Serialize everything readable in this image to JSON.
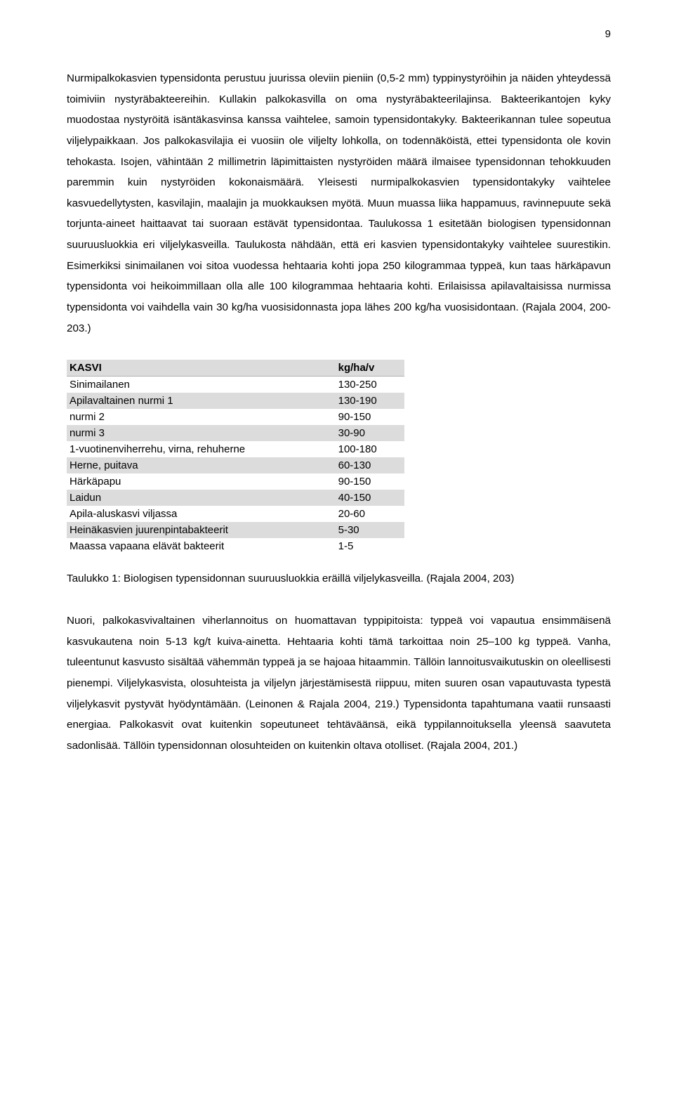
{
  "page_number": "9",
  "paragraph1": "Nurmipalkokasvien typensidonta perustuu juurissa oleviin pieniin (0,5-2 mm) typpinystyröihin ja näiden yhteydessä toimiviin nystyräbakteereihin. Kullakin palkokasvilla on oma nystyräbakteerilajinsa. Bakteerikantojen kyky muodostaa nystyröitä isäntäkasvinsa kanssa vaihtelee, samoin typensidontakyky. Bakteerikannan tulee sopeutua viljelypaikkaan. Jos palkokasvilajia ei vuosiin ole viljelty lohkolla, on todennäköistä, ettei typensidonta ole kovin tehokasta. Isojen, vähintään 2 millimetrin läpimittaisten nystyröiden määrä ilmaisee typensidonnan tehokkuuden paremmin kuin nystyröiden kokonaismäärä. Yleisesti nurmipalkokasvien typensidontakyky vaihtelee kasvuedellytysten, kasvilajin, maalajin ja muokkauksen myötä. Muun muassa liika happamuus, ravinnepuute sekä torjunta-aineet haittaavat tai suoraan estävät typensidontaa. Taulukossa 1 esitetään biologisen typensidonnan suuruusluokkia eri viljelykasveilla. Taulukosta nähdään, että eri kasvien typensidontakyky vaihtelee suurestikin. Esimerkiksi sinimailanen voi sitoa vuodessa hehtaaria kohti jopa 250 kilogrammaa typpeä, kun taas härkäpavun typensidonta voi heikoimmillaan olla alle 100 kilogrammaa hehtaaria kohti. Erilaisissa apilavaltaisissa nurmissa typensidonta voi vaihdella vain 30 kg/ha vuosisidonnasta jopa lähes 200 kg/ha vuosisidontaan. (Rajala 2004, 200-203.)",
  "table": {
    "header": {
      "col1": "KASVI",
      "col2": "kg/ha/v"
    },
    "rows": [
      {
        "col1": "Sinimailanen",
        "col2": "130-250",
        "alt": false
      },
      {
        "col1": "Apilavaltainen nurmi 1",
        "col2": "130-190",
        "alt": true
      },
      {
        "col1": "nurmi 2",
        "col2": "90-150",
        "alt": false,
        "indent": true
      },
      {
        "col1": "nurmi 3",
        "col2": "30-90",
        "alt": true,
        "indent": true
      },
      {
        "col1": "1-vuotinenviherrehu, virna, rehuherne",
        "col2": "100-180",
        "alt": false
      },
      {
        "col1": "Herne, puitava",
        "col2": "60-130",
        "alt": true
      },
      {
        "col1": "Härkäpapu",
        "col2": "90-150",
        "alt": false
      },
      {
        "col1": "Laidun",
        "col2": "40-150",
        "alt": true
      },
      {
        "col1": "Apila-aluskasvi viljassa",
        "col2": "20-60",
        "alt": false
      },
      {
        "col1": "Heinäkasvien juurenpintabakteerit",
        "col2": "5-30",
        "alt": true
      },
      {
        "col1": "Maassa vapaana elävät bakteerit",
        "col2": "1-5",
        "alt": false
      }
    ]
  },
  "caption": "Taulukko 1: Biologisen typensidonnan suuruusluokkia eräillä viljelykasveilla. (Rajala 2004, 203)",
  "paragraph2": "Nuori, palkokasvivaltainen viherlannoitus on huomattavan typpipitoista: typpeä voi vapautua ensimmäisenä kasvukautena noin 5-13 kg/t kuiva-ainetta. Hehtaaria kohti tämä tarkoittaa noin 25–100 kg typpeä. Vanha, tuleentunut kasvusto sisältää vähemmän typpeä ja se hajoaa hitaammin. Tällöin lannoitusvaikutuskin on oleellisesti pienempi. Viljelykasvista, olosuhteista ja viljelyn järjestämisestä riippuu, miten suuren osan vapautuvasta typestä viljelykasvit pystyvät hyödyntämään. (Leinonen & Rajala 2004, 219.) Typensidonta tapahtumana vaatii runsaasti energiaa. Palkokasvit ovat kuitenkin sopeutuneet tehtäväänsä, eikä typpilannoituksella yleensä saavuteta sadonlisää. Tällöin typensidonnan olosuhteiden on kuitenkin oltava otolliset. (Rajala 2004, 201.)",
  "colors": {
    "row_alt_bg": "#dcdcdc",
    "text": "#000000",
    "bg": "#ffffff"
  }
}
